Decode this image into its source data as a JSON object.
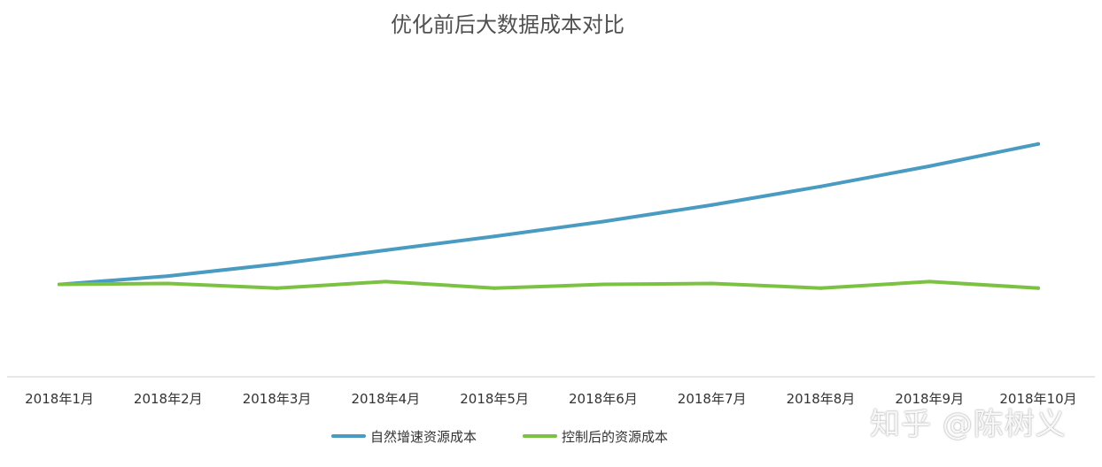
{
  "chart_data": {
    "type": "line",
    "title": "优化前后大数据成本对比",
    "categories": [
      "2018年1月",
      "2018年2月",
      "2018年3月",
      "2018年4月",
      "2018年5月",
      "2018年6月",
      "2018年7月",
      "2018年8月",
      "2018年9月",
      "2018年10月"
    ],
    "series": [
      {
        "name": "自然增速资源成本",
        "color": "#4a9bc2",
        "values": [
          100,
          109,
          122,
          137,
          152,
          168,
          186,
          206,
          228,
          252
        ]
      },
      {
        "name": "控制后的资源成本",
        "color": "#7cc242",
        "values": [
          100,
          101,
          96,
          103,
          96,
          100,
          101,
          96,
          103,
          96
        ]
      }
    ],
    "ylim": [
      0,
      360
    ],
    "grid": false,
    "legend_position": "bottom",
    "y_axis_labels_shown": false
  },
  "watermark": {
    "text": "知乎 @陈树义"
  }
}
